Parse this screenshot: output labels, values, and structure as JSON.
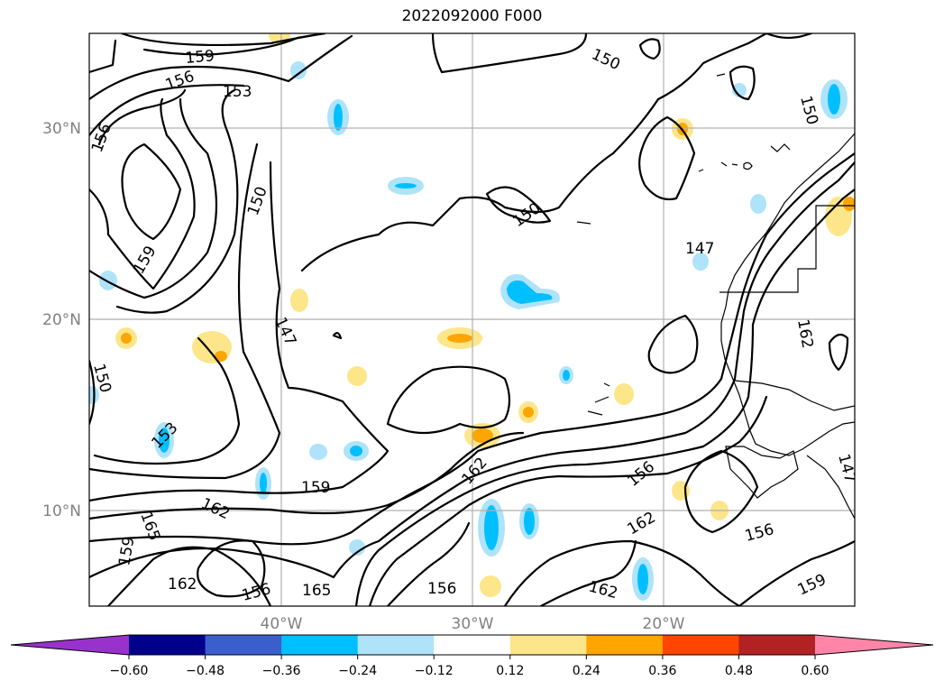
{
  "title": "2022092000 F000",
  "lat_labels": [
    "30°N",
    "20°N",
    "10°N"
  ],
  "lon_labels": [
    "40°W",
    "30°W",
    "20°W"
  ],
  "contour_labels": [
    "159",
    "156",
    "153",
    "150",
    "156",
    "150",
    "150",
    "159",
    "150",
    "147",
    "150",
    "147",
    "153",
    "159",
    "162",
    "165",
    "159",
    "162",
    "156",
    "165",
    "156",
    "162",
    "162",
    "156",
    "162",
    "156",
    "159",
    "147",
    "162",
    "150"
  ],
  "colorbar": {
    "ticks": [
      "−0.60",
      "−0.48",
      "−0.36",
      "−0.24",
      "−0.12",
      "0.12",
      "0.24",
      "0.36",
      "0.48",
      "0.60"
    ],
    "colors": [
      "#9932cc",
      "#00008b",
      "#3a5fcd",
      "#00bfff",
      "#aee3fa",
      "#ffffff",
      "#fde68a",
      "#ffa500",
      "#ff4500",
      "#b22222",
      "#ff85a8"
    ]
  }
}
